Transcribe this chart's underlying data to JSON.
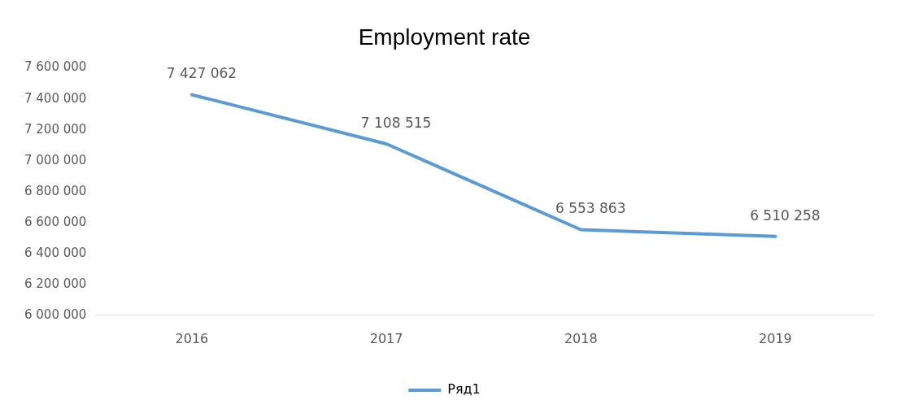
{
  "chart_data": {
    "type": "line",
    "title": "Employment rate",
    "categories": [
      "2016",
      "2017",
      "2018",
      "2019"
    ],
    "series": [
      {
        "name": "Ряд1",
        "color": "#5b9bd5",
        "values": [
          7427062,
          7108515,
          6553863,
          6510258
        ],
        "value_labels": [
          "7 427 062",
          "7 108 515",
          "6 553 863",
          "6 510 258"
        ]
      }
    ],
    "ylim": [
      6000000,
      7600000
    ],
    "yticks": [
      {
        "value": 6000000,
        "label": "6 000 000"
      },
      {
        "value": 6200000,
        "label": "6 200 000"
      },
      {
        "value": 6400000,
        "label": "6 400 000"
      },
      {
        "value": 6600000,
        "label": "6 600 000"
      },
      {
        "value": 6800000,
        "label": "6 800 000"
      },
      {
        "value": 7000000,
        "label": "7 000 000"
      },
      {
        "value": 7200000,
        "label": "7 200 000"
      },
      {
        "value": 7400000,
        "label": "7 400 000"
      },
      {
        "value": 7600000,
        "label": "7 600 000"
      }
    ],
    "grid": false,
    "legend": "bottom",
    "marker": "none",
    "line_style": "solid"
  }
}
